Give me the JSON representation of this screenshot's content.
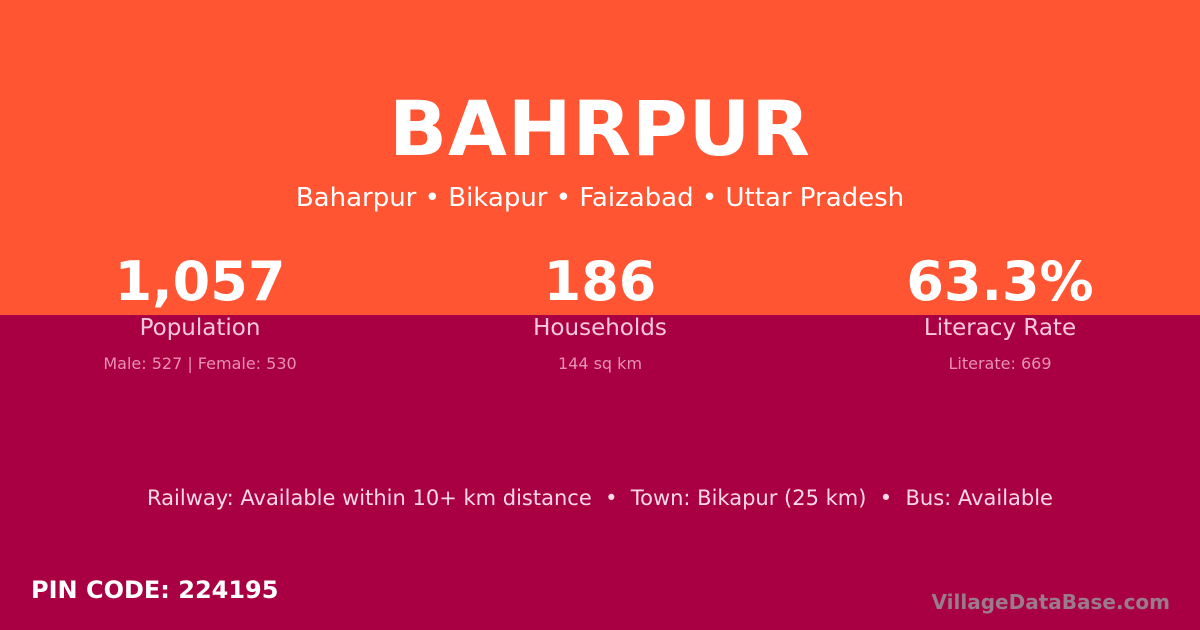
{
  "colors": {
    "top_background": "#ff5533",
    "bottom_background": "#a80042"
  },
  "title": "BAHRPUR",
  "subtitle": "Baharpur • Bikapur • Faizabad • Uttar Pradesh",
  "stats": [
    {
      "value": "1,057",
      "label": "Population",
      "detail": "Male: 527 | Female: 530"
    },
    {
      "value": "186",
      "label": "Households",
      "detail": "144 sq km"
    },
    {
      "value": "63.3%",
      "label": "Literacy Rate",
      "detail": "Literate: 669"
    }
  ],
  "info": "Railway: Available within 10+ km distance  •  Town: Bikapur (25 km)  •  Bus: Available",
  "pin_code": "PIN CODE: 224195",
  "watermark": "VillageDataBase.com"
}
